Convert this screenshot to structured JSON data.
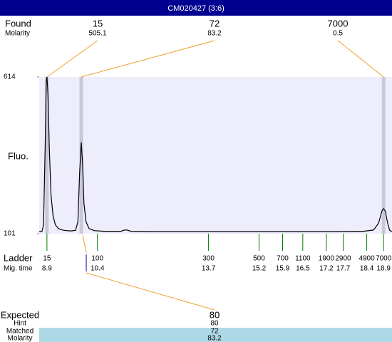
{
  "chart_data": {
    "type": "line",
    "title": "CM020427 (3:6)",
    "y_label": "Fluo.",
    "ylim": [
      101,
      614
    ],
    "yticks": [
      101,
      614
    ],
    "xlim": [
      8.67,
      19.15
    ],
    "x": [
      8.67,
      8.75,
      8.8,
      8.85,
      8.88,
      8.9,
      8.93,
      8.97,
      9.02,
      9.08,
      9.15,
      9.25,
      9.4,
      9.6,
      9.75,
      9.82,
      9.87,
      9.92,
      9.96,
      10.0,
      10.06,
      10.15,
      10.3,
      10.6,
      11.1,
      11.2,
      11.28,
      11.4,
      12,
      14,
      16,
      17.5,
      18.3,
      18.6,
      18.75,
      18.85,
      18.9,
      18.95,
      19.02,
      19.08,
      19.15
    ],
    "series": [
      {
        "color": "#000000",
        "values": [
          108,
          108,
          130,
          400,
          600,
          614,
          560,
          380,
          230,
          160,
          130,
          117,
          112,
          110,
          112,
          140,
          300,
          400,
          330,
          200,
          140,
          118,
          111,
          109,
          109,
          113,
          113,
          109,
          108,
          108,
          108,
          108,
          109,
          113,
          135,
          175,
          183,
          175,
          135,
          112,
          108
        ]
      }
    ],
    "found": {
      "label": "Found",
      "molarity_label": "Molarity",
      "sizes": [
        15,
        72,
        7000
      ],
      "molarity": [
        505.1,
        83.2,
        0.5
      ],
      "times": [
        8.9,
        9.92,
        18.9
      ]
    },
    "ladder": {
      "label": "Ladder",
      "time_label": "Mig. time",
      "sizes": [
        15,
        100,
        300,
        500,
        700,
        1100,
        1900,
        2900,
        4900,
        7000
      ],
      "times": [
        8.9,
        10.4,
        13.7,
        15.2,
        15.9,
        16.5,
        17.2,
        17.7,
        18.4,
        18.9
      ]
    },
    "expected": {
      "label": "Expected",
      "size": 80,
      "hint_label": "Hint",
      "hint": 80,
      "matched_label": "Matched",
      "matched": 72,
      "molarity_label": "Molarity",
      "molarity": 83.2
    }
  }
}
